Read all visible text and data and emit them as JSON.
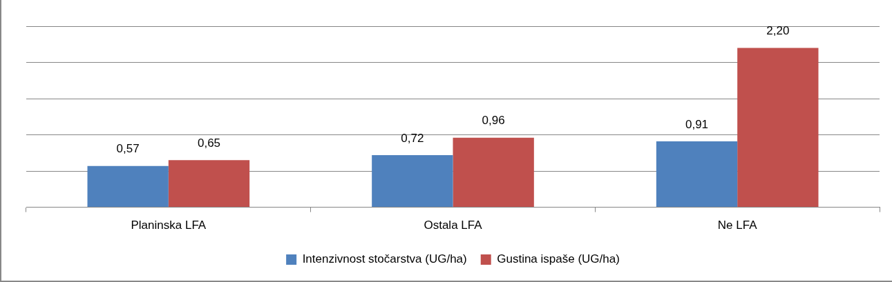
{
  "chart_data": {
    "type": "bar",
    "categories": [
      "Planinska LFA",
      "Ostala LFA",
      "Ne LFA"
    ],
    "series": [
      {
        "name": "Intenzivnost stočarstva (UG/ha)",
        "color": "#4f81bd",
        "values": [
          0.57,
          0.72,
          0.91
        ],
        "value_labels": [
          "0,57",
          "0,72",
          "0,91"
        ]
      },
      {
        "name": "Gustina ispaše (UG/ha)",
        "color": "#c0504d",
        "values": [
          0.65,
          0.96,
          2.2
        ],
        "value_labels": [
          "0,65",
          "0,96",
          "2,20"
        ]
      }
    ],
    "ylim": [
      0,
      2.5
    ],
    "yticks": [
      {
        "value": 0,
        "label": null
      },
      {
        "value": 0.5,
        "label": null
      },
      {
        "value": 1,
        "label": null
      },
      {
        "value": 1.5,
        "label": null
      },
      {
        "value": 2,
        "label": null
      },
      {
        "value": 2.5,
        "label": null
      }
    ],
    "tick_labels": "x",
    "grid": "y",
    "legend": "bottom"
  }
}
